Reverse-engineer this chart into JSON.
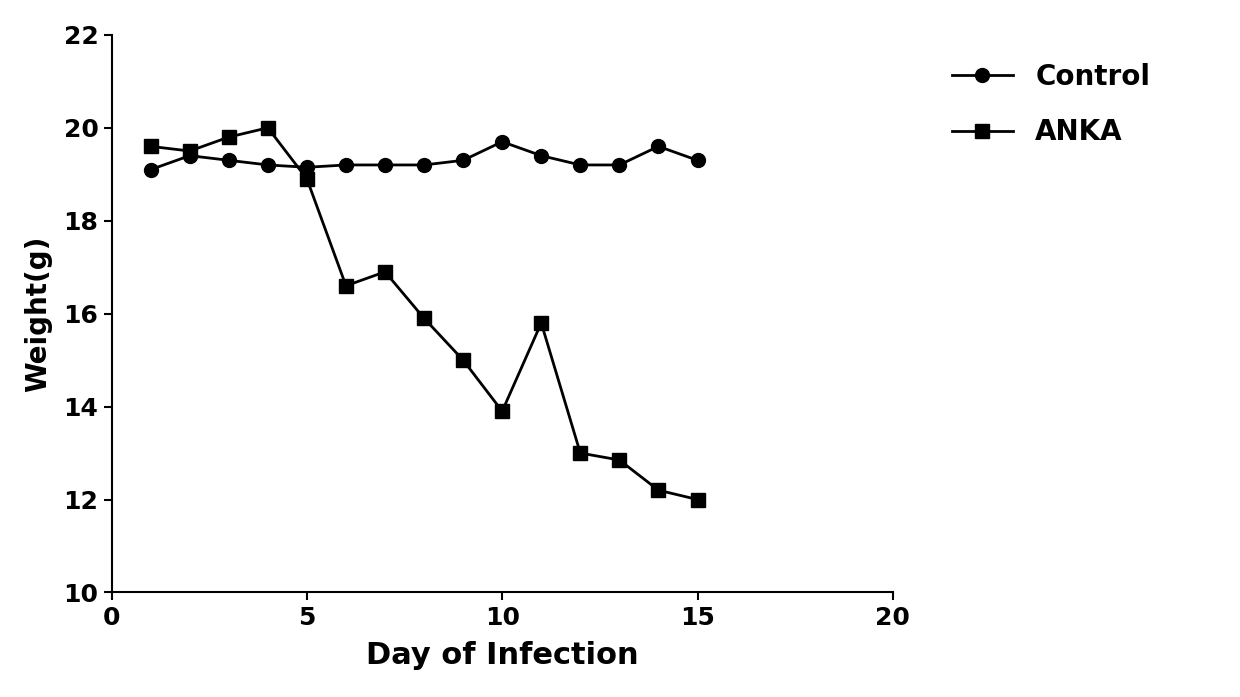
{
  "control_x": [
    1,
    2,
    3,
    4,
    5,
    6,
    7,
    8,
    9,
    10,
    11,
    12,
    13,
    14,
    15
  ],
  "control_y": [
    19.1,
    19.4,
    19.3,
    19.2,
    19.15,
    19.2,
    19.2,
    19.2,
    19.3,
    19.7,
    19.4,
    19.2,
    19.2,
    19.6,
    19.3
  ],
  "anka_x": [
    1,
    2,
    3,
    4,
    5,
    6,
    7,
    8,
    9,
    10,
    11,
    12,
    13,
    14,
    15
  ],
  "anka_y": [
    19.6,
    19.5,
    19.8,
    20.0,
    18.9,
    16.6,
    16.9,
    15.9,
    15.0,
    13.9,
    15.8,
    13.0,
    12.85,
    12.2,
    12.0
  ],
  "xlabel": "Day of Infection",
  "ylabel": "Weight(g)",
  "xlim": [
    0,
    20
  ],
  "ylim": [
    10,
    22
  ],
  "yticks": [
    10,
    12,
    14,
    16,
    18,
    20,
    22
  ],
  "xticks": [
    0,
    5,
    10,
    15,
    20
  ],
  "control_label": "Control",
  "anka_label": "ANKA",
  "line_color": "#000000",
  "marker_circle": "o",
  "marker_square": "s",
  "markersize": 10,
  "linewidth": 2.0,
  "xlabel_fontsize": 22,
  "ylabel_fontsize": 20,
  "tick_fontsize": 18,
  "legend_fontsize": 20
}
